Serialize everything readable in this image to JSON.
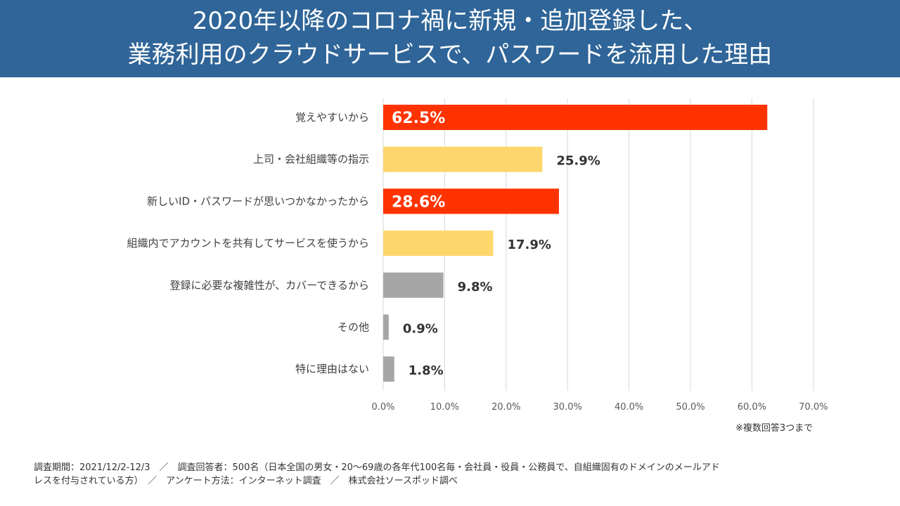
{
  "title_lines": [
    "2020年以降のコロナ禍に新規・追加登録した、",
    "業務利用のクラウドサービスで、パスワードを流用した理由"
  ],
  "note": "※複数回答3つまで",
  "footnote_lines": [
    "調査期間：2021/12/2-12/3　／　調査回答者：500名（日本全国の男女・20〜69歳の各年代100名毎・会社員・役員・公務員で、自組織固有のドメインのメールアド",
    "レスを付与されている方）　／　アンケート方法：インターネット調査　／　株式会社ソースポッド調べ"
  ],
  "colors": {
    "header_bg": "#2f6598",
    "highlight": "#ff3300",
    "secondary": "#fdd76b",
    "neutral": "#a6a6a6",
    "grid": "#d9d9d9"
  },
  "chart_data": {
    "type": "bar",
    "orientation": "horizontal",
    "categories": [
      "覚えやすいから",
      "上司・会社組織等の指示",
      "新しいID・パスワードが思いつかなかったから",
      "組織内でアカウントを共有してサービスを使うから",
      "登録に必要な複雑性が、カバーできるから",
      "その他",
      "特に理由はない"
    ],
    "values": [
      62.5,
      25.9,
      28.6,
      17.9,
      9.8,
      0.9,
      1.8
    ],
    "value_labels": [
      "62.5%",
      "25.9%",
      "28.6%",
      "17.9%",
      "9.8%",
      "0.9%",
      "1.8%"
    ],
    "bar_colors": [
      "#ff3300",
      "#fdd76b",
      "#ff3300",
      "#fdd76b",
      "#a6a6a6",
      "#a6a6a6",
      "#a6a6a6"
    ],
    "label_inside": [
      true,
      false,
      true,
      false,
      false,
      false,
      false
    ],
    "xlim": [
      0,
      70
    ],
    "x_ticks": [
      "0.0%",
      "10.0%",
      "20.0%",
      "30.0%",
      "40.0%",
      "50.0%",
      "60.0%",
      "70.0%"
    ],
    "grid": true,
    "legend": "none"
  }
}
